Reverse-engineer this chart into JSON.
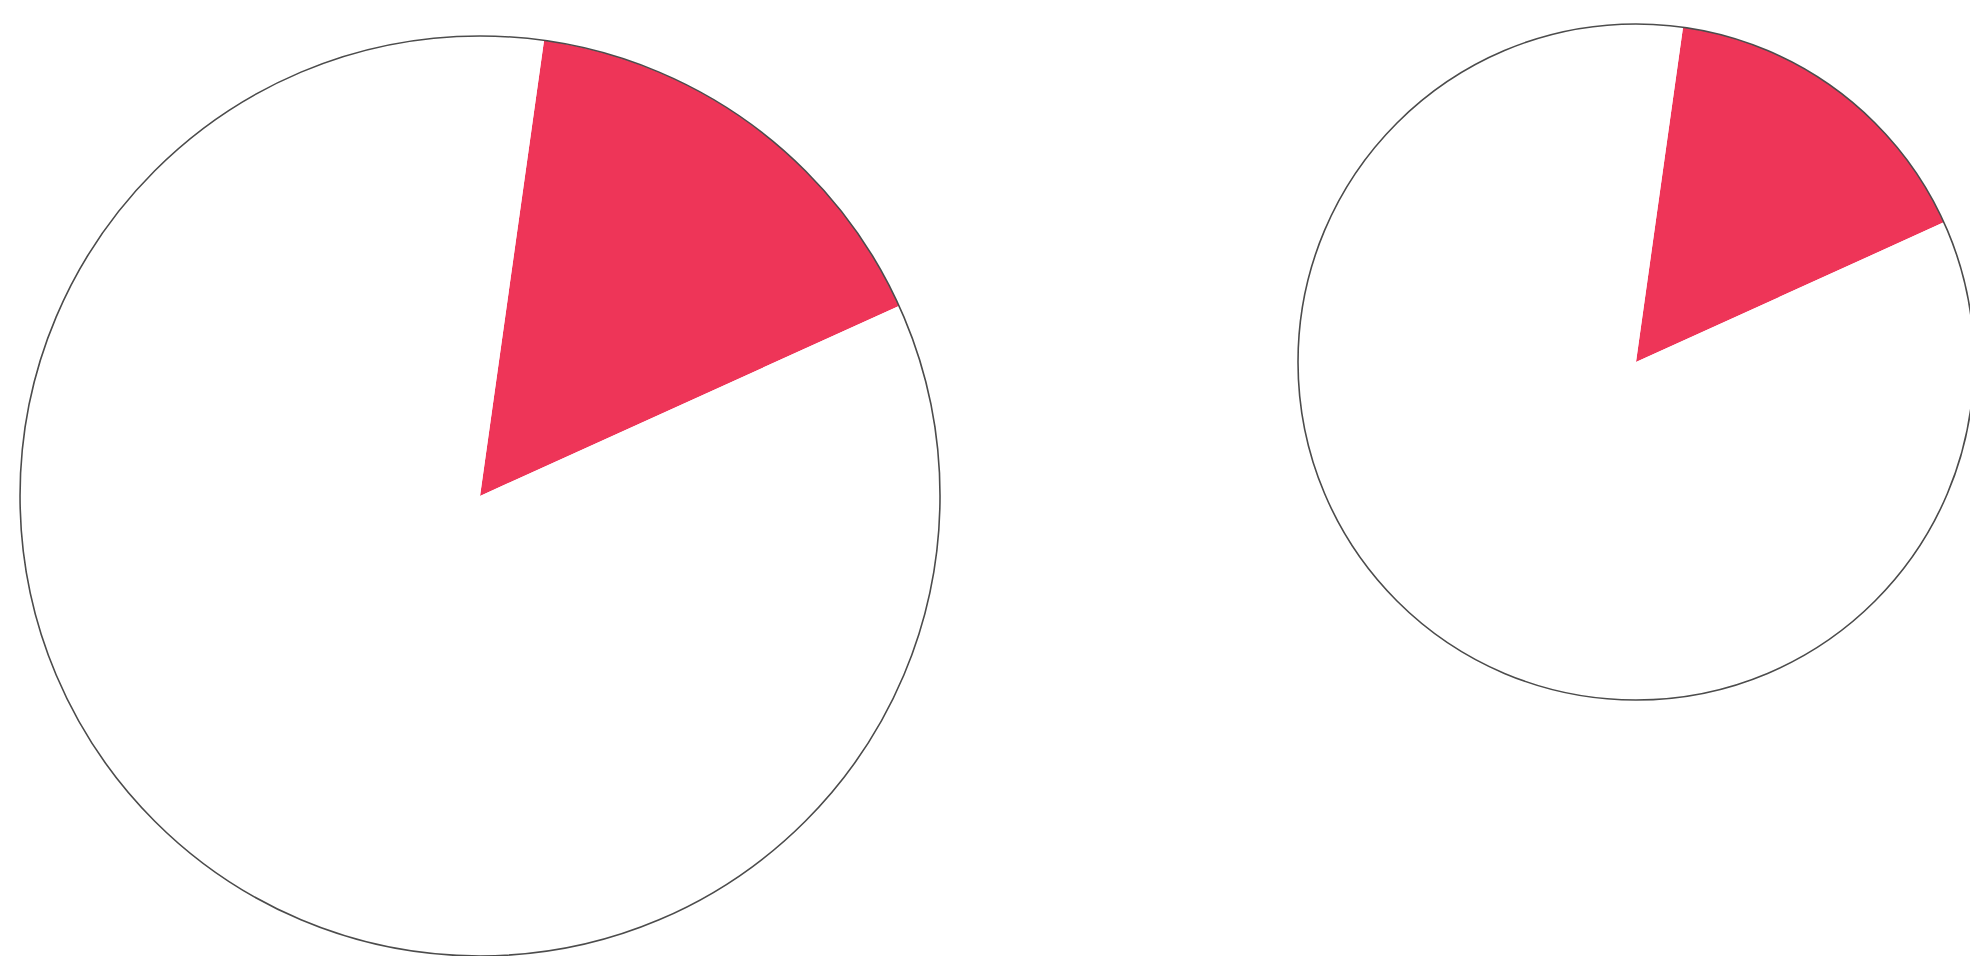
{
  "chart_data": [
    {
      "type": "pie",
      "values": [
        16,
        84
      ],
      "colors": [
        "#ee3558",
        "#ffffff"
      ]
    },
    {
      "type": "pie",
      "values": [
        16,
        84
      ],
      "colors": [
        "#ee3558",
        "#ffffff"
      ]
    }
  ]
}
